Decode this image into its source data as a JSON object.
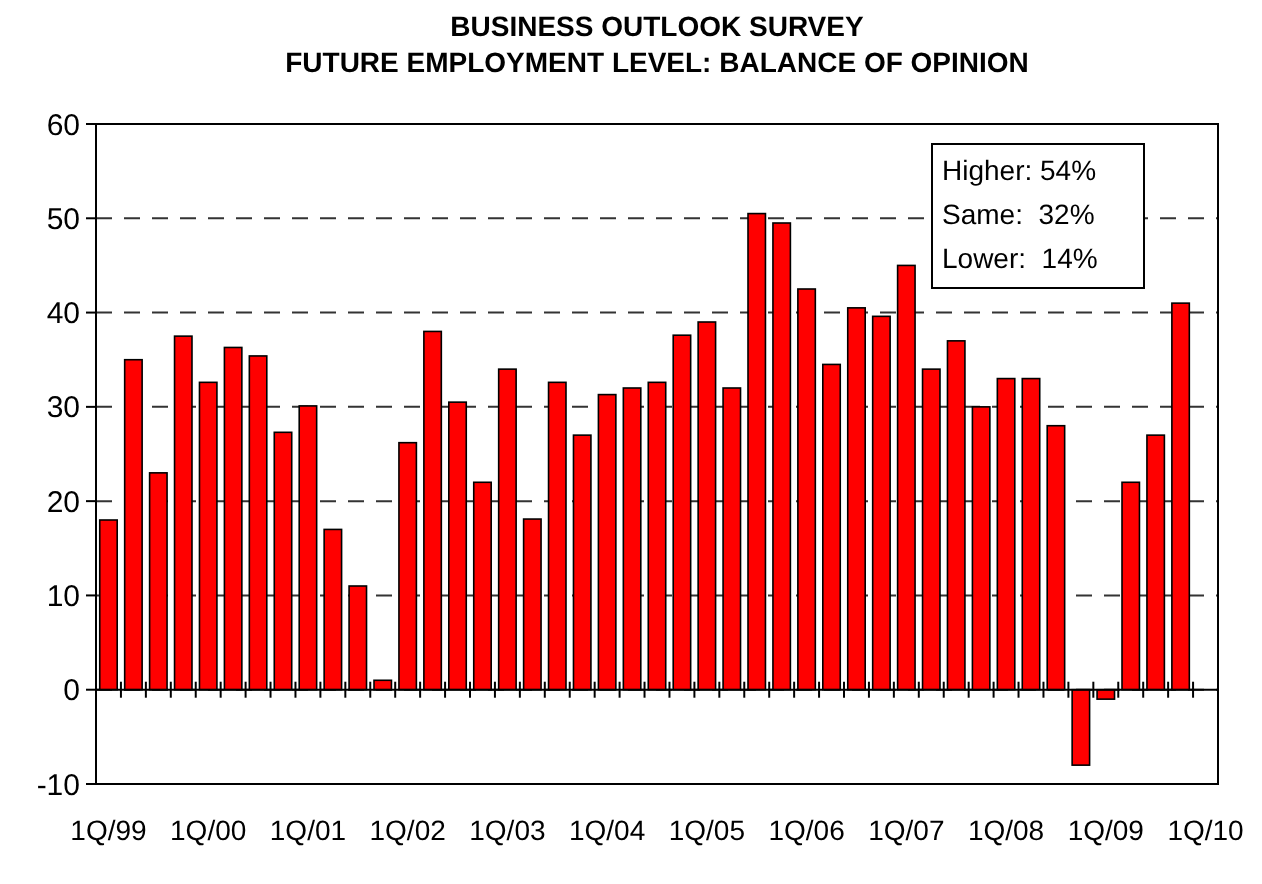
{
  "chart_data": {
    "type": "bar",
    "title": "BUSINESS OUTLOOK SURVEY\nFUTURE EMPLOYMENT LEVEL: BALANCE OF OPINION",
    "categories": [
      "1Q/99",
      null,
      null,
      null,
      "1Q/00",
      null,
      null,
      null,
      "1Q/01",
      null,
      null,
      null,
      "1Q/02",
      null,
      null,
      null,
      "1Q/03",
      null,
      null,
      null,
      "1Q/04",
      null,
      null,
      null,
      "1Q/05",
      null,
      null,
      null,
      "1Q/06",
      null,
      null,
      null,
      "1Q/07",
      null,
      null,
      null,
      "1Q/08",
      null,
      null,
      null,
      "1Q/09",
      null,
      null,
      null,
      "1Q/10"
    ],
    "values": [
      18,
      35,
      23,
      37.5,
      32.6,
      36.3,
      35.4,
      27.3,
      30.1,
      17,
      11,
      1,
      26.2,
      38,
      30.5,
      22,
      34,
      18.1,
      32.6,
      27,
      31.3,
      32,
      32.6,
      37.6,
      39,
      32,
      50.5,
      49.5,
      42.5,
      34.5,
      40.5,
      39.6,
      45,
      34,
      37,
      30,
      33,
      33,
      28,
      -8,
      -1,
      22,
      27,
      41,
      null
    ],
    "color": "#ff0000",
    "ylim": [
      -10,
      60
    ],
    "yticks": [
      -10,
      0,
      10,
      20,
      30,
      40,
      50,
      60
    ],
    "grid": "y",
    "annotations": [
      "Higher: 54%",
      "Same:  32%",
      "Lower:  14%"
    ]
  }
}
